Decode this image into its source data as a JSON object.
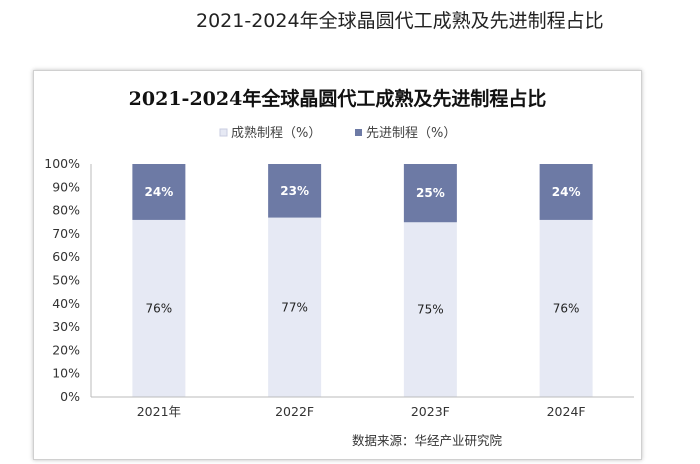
{
  "page_title": "2021-2024年全球晶圆代工成熟及先进制程占比",
  "chart_data": {
    "type": "bar",
    "stacked": true,
    "title": "2021-2024年全球晶圆代工成熟及先进制程占比",
    "categories": [
      "2021年",
      "2022F",
      "2023F",
      "2024F"
    ],
    "series": [
      {
        "name": "成熟制程（%）",
        "values": [
          76,
          77,
          75,
          76
        ],
        "color": "#e6e9f4",
        "labels": [
          "76%",
          "77%",
          "75%",
          "76%"
        ]
      },
      {
        "name": "先进制程（%）",
        "values": [
          24,
          23,
          25,
          24
        ],
        "color": "#6d7aa5",
        "labels": [
          "24%",
          "23%",
          "25%",
          "24%"
        ]
      }
    ],
    "ylim": [
      0,
      100
    ],
    "yticks": [
      "0%",
      "10%",
      "20%",
      "30%",
      "40%",
      "50%",
      "60%",
      "70%",
      "80%",
      "90%",
      "100%"
    ],
    "legend_position": "top",
    "grid": false,
    "source": "数据来源：华经产业研究院"
  }
}
